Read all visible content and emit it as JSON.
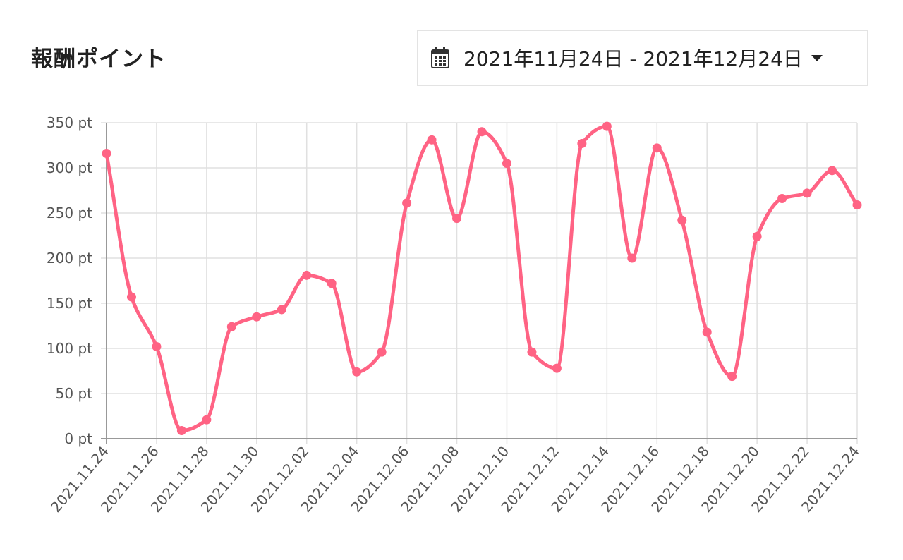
{
  "header": {
    "title": "報酬ポイント"
  },
  "date_range": {
    "label": "2021年11月24日 - 2021年12月24日",
    "icon": "calendar-icon",
    "dropdown_icon": "caret-down-icon"
  },
  "colors": {
    "series": "#ff6384",
    "grid": "#e0e0e0",
    "axis": "#999999"
  },
  "chart_data": {
    "type": "line",
    "title": "",
    "xlabel": "",
    "ylabel": "",
    "ylim": [
      0,
      350
    ],
    "y_ticks": [
      "0 pt",
      "50 pt",
      "100 pt",
      "150 pt",
      "200 pt",
      "250 pt",
      "300 pt",
      "350 pt"
    ],
    "x_tick_labels": [
      "2021.11.24",
      "2021.11.26",
      "2021.11.28",
      "2021.11.30",
      "2021.12.02",
      "2021.12.04",
      "2021.12.06",
      "2021.12.08",
      "2021.12.10",
      "2021.12.12",
      "2021.12.14",
      "2021.12.16",
      "2021.12.18",
      "2021.12.20",
      "2021.12.22",
      "2021.12.24"
    ],
    "grid": true,
    "curve": "smooth",
    "x": [
      "2021.11.24",
      "2021.11.25",
      "2021.11.26",
      "2021.11.27",
      "2021.11.28",
      "2021.11.29",
      "2021.11.30",
      "2021.12.01",
      "2021.12.02",
      "2021.12.03",
      "2021.12.04",
      "2021.12.05",
      "2021.12.06",
      "2021.12.07",
      "2021.12.08",
      "2021.12.09",
      "2021.12.10",
      "2021.12.11",
      "2021.12.12",
      "2021.12.13",
      "2021.12.14",
      "2021.12.15",
      "2021.12.16",
      "2021.12.17",
      "2021.12.18",
      "2021.12.19",
      "2021.12.20",
      "2021.12.21",
      "2021.12.22",
      "2021.12.23",
      "2021.12.24"
    ],
    "series": [
      {
        "values": [
          316,
          157,
          102,
          9,
          21,
          124,
          135,
          143,
          181,
          172,
          74,
          96,
          261,
          331,
          244,
          340,
          305,
          96,
          78,
          327,
          346,
          200,
          322,
          242,
          118,
          69,
          224,
          266,
          272,
          297,
          259
        ]
      }
    ]
  }
}
